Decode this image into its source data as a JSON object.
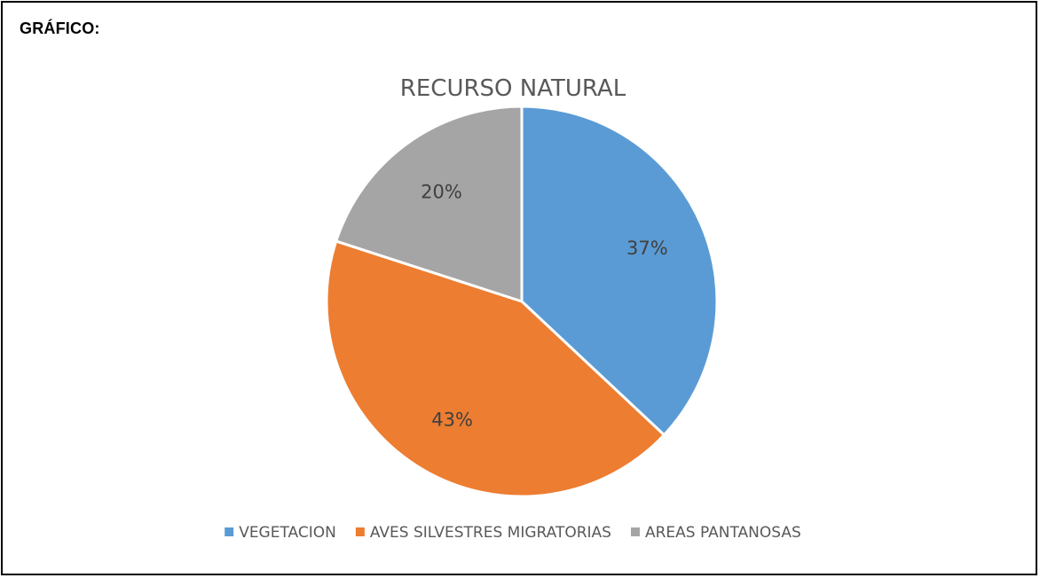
{
  "heading": "GRÁFICO:",
  "chart_data": {
    "type": "pie",
    "title": "RECURSO NATURAL",
    "categories": [
      "VEGETACION",
      "AVES SILVESTRES MIGRATORIAS",
      "AREAS PANTANOSAS"
    ],
    "values": [
      37,
      43,
      20
    ],
    "labels": [
      "37%",
      "43%",
      "20%"
    ],
    "colors": [
      "#5B9BD5",
      "#ED7D31",
      "#A5A5A5"
    ],
    "legend_position": "bottom",
    "start_angle": "12 o'clock, clockwise"
  }
}
